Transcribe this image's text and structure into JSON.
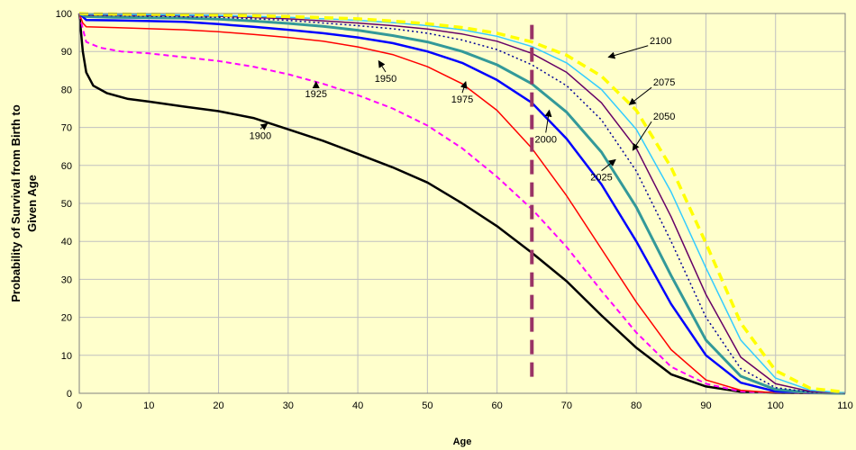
{
  "chart_data": {
    "type": "line",
    "title": "",
    "xlabel": "Age",
    "ylabel_line1": "Probability of Survival from Birth to",
    "ylabel_line2": "Given Age",
    "xlim": [
      0,
      110
    ],
    "ylim": [
      0,
      100
    ],
    "xticks": [
      0,
      10,
      20,
      30,
      40,
      50,
      60,
      70,
      80,
      90,
      100,
      110
    ],
    "yticks": [
      0,
      10,
      20,
      30,
      40,
      50,
      60,
      70,
      80,
      90,
      100
    ],
    "grid": true,
    "legend": "none",
    "background_color": "#ffffcc",
    "series": [
      {
        "name": "1900",
        "color": "#000000",
        "dash": "solid",
        "points": [
          [
            0,
            100
          ],
          [
            0.5,
            90
          ],
          [
            1,
            84.5
          ],
          [
            2,
            81
          ],
          [
            4,
            79
          ],
          [
            7,
            77.5
          ],
          [
            10,
            76.8
          ],
          [
            15,
            75.5
          ],
          [
            20,
            74.3
          ],
          [
            25,
            72.5
          ],
          [
            30,
            69.5
          ],
          [
            35,
            66.5
          ],
          [
            40,
            63
          ],
          [
            45,
            59.5
          ],
          [
            50,
            55.5
          ],
          [
            55,
            50
          ],
          [
            60,
            44
          ],
          [
            65,
            37
          ],
          [
            70,
            29.5
          ],
          [
            75,
            20.5
          ],
          [
            80,
            12
          ],
          [
            85,
            5
          ],
          [
            90,
            1.8
          ],
          [
            95,
            0.4
          ],
          [
            100,
            0.1
          ],
          [
            110,
            0
          ]
        ]
      },
      {
        "name": "1925",
        "color": "#ff00ff",
        "dash": "dashed",
        "points": [
          [
            0,
            100
          ],
          [
            0.5,
            96
          ],
          [
            1,
            92.5
          ],
          [
            3,
            91
          ],
          [
            6,
            90
          ],
          [
            10,
            89.5
          ],
          [
            15,
            88.5
          ],
          [
            20,
            87.5
          ],
          [
            25,
            86
          ],
          [
            30,
            84
          ],
          [
            35,
            81.5
          ],
          [
            40,
            78.5
          ],
          [
            45,
            75
          ],
          [
            50,
            70.5
          ],
          [
            55,
            64.5
          ],
          [
            60,
            57
          ],
          [
            65,
            48.5
          ],
          [
            70,
            38.5
          ],
          [
            75,
            27
          ],
          [
            80,
            16
          ],
          [
            85,
            7
          ],
          [
            90,
            2.5
          ],
          [
            95,
            0.5
          ],
          [
            100,
            0.1
          ],
          [
            110,
            0
          ]
        ]
      },
      {
        "name": "1950",
        "color": "#ff0000",
        "dash": "solid",
        "points": [
          [
            0,
            100
          ],
          [
            0.5,
            97.5
          ],
          [
            1,
            96.5
          ],
          [
            5,
            96.3
          ],
          [
            10,
            96
          ],
          [
            15,
            95.7
          ],
          [
            20,
            95.2
          ],
          [
            25,
            94.5
          ],
          [
            30,
            93.7
          ],
          [
            35,
            92.7
          ],
          [
            40,
            91.2
          ],
          [
            45,
            89.2
          ],
          [
            50,
            86
          ],
          [
            55,
            81.5
          ],
          [
            60,
            74.5
          ],
          [
            65,
            64.5
          ],
          [
            70,
            52
          ],
          [
            75,
            38
          ],
          [
            80,
            24
          ],
          [
            85,
            11.5
          ],
          [
            90,
            3.5
          ],
          [
            95,
            0.8
          ],
          [
            100,
            0.1
          ],
          [
            110,
            0
          ]
        ]
      },
      {
        "name": "1975",
        "color": "#0000ff",
        "dash": "solid",
        "points": [
          [
            0,
            100
          ],
          [
            1,
            98.3
          ],
          [
            5,
            98.2
          ],
          [
            10,
            98
          ],
          [
            15,
            97.8
          ],
          [
            20,
            97.2
          ],
          [
            25,
            96.5
          ],
          [
            30,
            95.7
          ],
          [
            35,
            94.8
          ],
          [
            40,
            93.7
          ],
          [
            45,
            92.2
          ],
          [
            50,
            90
          ],
          [
            55,
            87
          ],
          [
            60,
            82.5
          ],
          [
            65,
            76.5
          ],
          [
            70,
            67
          ],
          [
            75,
            55
          ],
          [
            80,
            40
          ],
          [
            85,
            23.5
          ],
          [
            90,
            10
          ],
          [
            95,
            2.8
          ],
          [
            100,
            0.5
          ],
          [
            105,
            0.1
          ],
          [
            110,
            0
          ]
        ]
      },
      {
        "name": "2000",
        "color": "#339999",
        "dash": "solid",
        "points": [
          [
            0,
            100
          ],
          [
            1,
            99.2
          ],
          [
            5,
            99
          ],
          [
            10,
            98.9
          ],
          [
            15,
            98.8
          ],
          [
            20,
            98.5
          ],
          [
            25,
            98
          ],
          [
            30,
            97.4
          ],
          [
            35,
            96.6
          ],
          [
            40,
            95.6
          ],
          [
            45,
            94.2
          ],
          [
            50,
            92.5
          ],
          [
            55,
            90
          ],
          [
            60,
            86.5
          ],
          [
            65,
            81.5
          ],
          [
            70,
            74
          ],
          [
            75,
            63.5
          ],
          [
            80,
            49
          ],
          [
            85,
            31
          ],
          [
            90,
            14
          ],
          [
            95,
            4.5
          ],
          [
            100,
            1
          ],
          [
            105,
            0.2
          ],
          [
            110,
            0
          ]
        ]
      },
      {
        "name": "2025",
        "color": "#000099",
        "dash": "dotted",
        "points": [
          [
            0,
            100
          ],
          [
            1,
            99.5
          ],
          [
            5,
            99.4
          ],
          [
            10,
            99.3
          ],
          [
            20,
            99
          ],
          [
            30,
            98.2
          ],
          [
            40,
            96.8
          ],
          [
            45,
            96
          ],
          [
            50,
            94.8
          ],
          [
            55,
            93
          ],
          [
            60,
            90.5
          ],
          [
            65,
            86.5
          ],
          [
            70,
            81
          ],
          [
            75,
            72
          ],
          [
            80,
            58.5
          ],
          [
            85,
            40
          ],
          [
            90,
            20
          ],
          [
            95,
            6.5
          ],
          [
            100,
            1.5
          ],
          [
            105,
            0.3
          ],
          [
            110,
            0
          ]
        ]
      },
      {
        "name": "2050",
        "color": "#660066",
        "dash": "solid",
        "points": [
          [
            0,
            100
          ],
          [
            1,
            99.6
          ],
          [
            10,
            99.5
          ],
          [
            20,
            99.3
          ],
          [
            30,
            98.6
          ],
          [
            40,
            97.5
          ],
          [
            45,
            96.8
          ],
          [
            50,
            95.9
          ],
          [
            55,
            94.6
          ],
          [
            60,
            92.7
          ],
          [
            65,
            89.5
          ],
          [
            70,
            84.5
          ],
          [
            75,
            76.5
          ],
          [
            80,
            64.5
          ],
          [
            85,
            46.5
          ],
          [
            90,
            26
          ],
          [
            95,
            9.5
          ],
          [
            100,
            2.5
          ],
          [
            105,
            0.5
          ],
          [
            110,
            0
          ]
        ]
      },
      {
        "name": "2075",
        "color": "#33ccff",
        "dash": "solid",
        "points": [
          [
            0,
            100
          ],
          [
            1,
            99.8
          ],
          [
            10,
            99.7
          ],
          [
            20,
            99.5
          ],
          [
            30,
            99
          ],
          [
            40,
            98.2
          ],
          [
            45,
            97.6
          ],
          [
            50,
            96.8
          ],
          [
            55,
            95.7
          ],
          [
            60,
            94
          ],
          [
            65,
            91.3
          ],
          [
            70,
            87
          ],
          [
            75,
            80
          ],
          [
            80,
            69.5
          ],
          [
            85,
            53
          ],
          [
            90,
            33
          ],
          [
            95,
            14
          ],
          [
            100,
            4
          ],
          [
            105,
            0.8
          ],
          [
            110,
            0.1
          ]
        ]
      },
      {
        "name": "2100",
        "color": "#ffff00",
        "dash": "dashed",
        "points": [
          [
            0,
            100
          ],
          [
            1,
            99.9
          ],
          [
            10,
            99.8
          ],
          [
            20,
            99.6
          ],
          [
            30,
            99.2
          ],
          [
            40,
            98.6
          ],
          [
            45,
            98
          ],
          [
            50,
            97.3
          ],
          [
            55,
            96.3
          ],
          [
            60,
            94.8
          ],
          [
            65,
            92.5
          ],
          [
            70,
            89
          ],
          [
            75,
            83.5
          ],
          [
            80,
            74.5
          ],
          [
            85,
            59.5
          ],
          [
            90,
            39.5
          ],
          [
            95,
            18.5
          ],
          [
            100,
            6
          ],
          [
            105,
            1.3
          ],
          [
            110,
            0.3
          ]
        ]
      }
    ],
    "reference_line": {
      "x": 65,
      "color": "#993366",
      "style": "dashed"
    },
    "annotations": [
      {
        "label": "1900",
        "label_at": [
          26,
          67
        ],
        "arrow_to": [
          27,
          71
        ]
      },
      {
        "label": "1925",
        "label_at": [
          34,
          78
        ],
        "arrow_to": [
          34,
          82
        ]
      },
      {
        "label": "1950",
        "label_at": [
          44,
          82
        ],
        "arrow_to": [
          43,
          87.5
        ]
      },
      {
        "label": "1975",
        "label_at": [
          55,
          76.5
        ],
        "arrow_to": [
          55.5,
          82
        ]
      },
      {
        "label": "2000",
        "label_at": [
          67,
          66
        ],
        "arrow_to": [
          67.5,
          74.5
        ]
      },
      {
        "label": "2025",
        "label_at": [
          75,
          56
        ],
        "arrow_to": [
          77,
          61.5
        ]
      },
      {
        "label": "2050",
        "label_at": [
          84,
          72
        ],
        "arrow_to": [
          79.5,
          64
        ]
      },
      {
        "label": "2075",
        "label_at": [
          84,
          81
        ],
        "arrow_to": [
          79,
          76
        ]
      },
      {
        "label": "2100",
        "label_at": [
          83.5,
          92
        ],
        "arrow_to": [
          76,
          88.5
        ]
      }
    ]
  }
}
